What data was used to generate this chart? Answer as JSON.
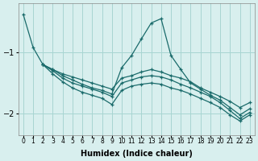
{
  "xlabel": "Humidex (Indice chaleur)",
  "xlim": [
    -0.5,
    23.5
  ],
  "ylim": [
    -2.35,
    -0.2
  ],
  "yticks": [
    -2,
    -1
  ],
  "xticks": [
    0,
    1,
    2,
    3,
    4,
    5,
    6,
    7,
    8,
    9,
    10,
    11,
    12,
    13,
    14,
    15,
    16,
    17,
    18,
    19,
    20,
    21,
    22,
    23
  ],
  "bg_color": "#d8efee",
  "grid_color": "#a8d5d2",
  "line_color": "#1a6b6b",
  "lines": [
    {
      "x": [
        0,
        1,
        2,
        3,
        4,
        5,
        6,
        7,
        8,
        9,
        10,
        11,
        12,
        13,
        14,
        15,
        16,
        17,
        18,
        19,
        20,
        21,
        22,
        23
      ],
      "y": [
        -0.38,
        -0.92,
        -1.2,
        -1.28,
        -1.35,
        -1.4,
        -1.45,
        -1.5,
        -1.55,
        -1.6,
        -1.42,
        -1.38,
        -1.32,
        -1.28,
        -1.32,
        -1.38,
        -1.42,
        -1.48,
        -1.58,
        -1.65,
        -1.72,
        -1.8,
        -1.9,
        -1.82
      ]
    },
    {
      "x": [
        2,
        3,
        4,
        5,
        6,
        7,
        8,
        9,
        10,
        11,
        12,
        13,
        14,
        15,
        16,
        17,
        18,
        19,
        20,
        21,
        22,
        23
      ],
      "y": [
        -1.2,
        -1.28,
        -1.38,
        -1.45,
        -1.52,
        -1.58,
        -1.62,
        -1.68,
        -1.25,
        -1.05,
        -0.78,
        -0.52,
        -0.45,
        -1.05,
        -1.28,
        -1.5,
        -1.6,
        -1.7,
        -1.78,
        -1.9,
        -2.02,
        -1.92
      ]
    },
    {
      "x": [
        2,
        3,
        4,
        5,
        6,
        7,
        8,
        9,
        10,
        11,
        12,
        13,
        14,
        15,
        16,
        17,
        18,
        19,
        20,
        21,
        22,
        23
      ],
      "y": [
        -1.2,
        -1.3,
        -1.42,
        -1.5,
        -1.55,
        -1.6,
        -1.65,
        -1.72,
        -1.5,
        -1.45,
        -1.4,
        -1.38,
        -1.4,
        -1.45,
        -1.52,
        -1.58,
        -1.65,
        -1.72,
        -1.82,
        -1.95,
        -2.08,
        -1.98
      ]
    },
    {
      "x": [
        2,
        3,
        4,
        5,
        6,
        7,
        8,
        9,
        10,
        11,
        12,
        13,
        14,
        15,
        16,
        17,
        18,
        19,
        20,
        21,
        22,
        23
      ],
      "y": [
        -1.2,
        -1.35,
        -1.48,
        -1.58,
        -1.65,
        -1.7,
        -1.75,
        -1.85,
        -1.62,
        -1.55,
        -1.52,
        -1.5,
        -1.52,
        -1.58,
        -1.62,
        -1.68,
        -1.75,
        -1.82,
        -1.9,
        -2.02,
        -2.12,
        -2.02
      ]
    }
  ]
}
